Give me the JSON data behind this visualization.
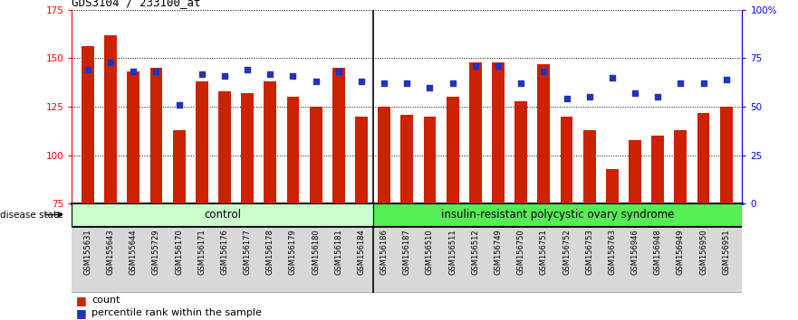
{
  "title": "GDS3104 / 233100_at",
  "samples": [
    "GSM155631",
    "GSM155643",
    "GSM155644",
    "GSM155729",
    "GSM156170",
    "GSM156171",
    "GSM156176",
    "GSM156177",
    "GSM156178",
    "GSM156179",
    "GSM156180",
    "GSM156181",
    "GSM156184",
    "GSM156186",
    "GSM156187",
    "GSM156510",
    "GSM156511",
    "GSM156512",
    "GSM156749",
    "GSM156750",
    "GSM156751",
    "GSM156752",
    "GSM156753",
    "GSM156763",
    "GSM156946",
    "GSM156948",
    "GSM156949",
    "GSM156950",
    "GSM156951"
  ],
  "counts": [
    156,
    162,
    143,
    145,
    113,
    138,
    133,
    132,
    138,
    130,
    125,
    145,
    120,
    125,
    121,
    120,
    130,
    148,
    148,
    128,
    147,
    120,
    113,
    93,
    108,
    110,
    113,
    122,
    125
  ],
  "percentiles": [
    69,
    73,
    68,
    68,
    51,
    67,
    66,
    69,
    67,
    66,
    63,
    68,
    63,
    62,
    62,
    60,
    62,
    71,
    71,
    62,
    68,
    54,
    55,
    65,
    57,
    55,
    62,
    62,
    64
  ],
  "n_control": 13,
  "control_label": "control",
  "disease_label": "insulin-resistant polycystic ovary syndrome",
  "ylim_left": [
    75,
    175
  ],
  "ylim_right": [
    0,
    100
  ],
  "yticks_left": [
    75,
    100,
    125,
    150,
    175
  ],
  "yticks_right": [
    0,
    25,
    50,
    75,
    100
  ],
  "ytick_right_labels": [
    "0",
    "25",
    "50",
    "75",
    "100%"
  ],
  "bar_color": "#cc2200",
  "dot_color": "#2233bb",
  "control_bg": "#ccffcc",
  "disease_bg": "#55ee55",
  "tick_bg": "#d8d8d8",
  "bar_width": 0.55,
  "bar_bottom": 75,
  "xlim": [
    -0.7,
    28.7
  ]
}
